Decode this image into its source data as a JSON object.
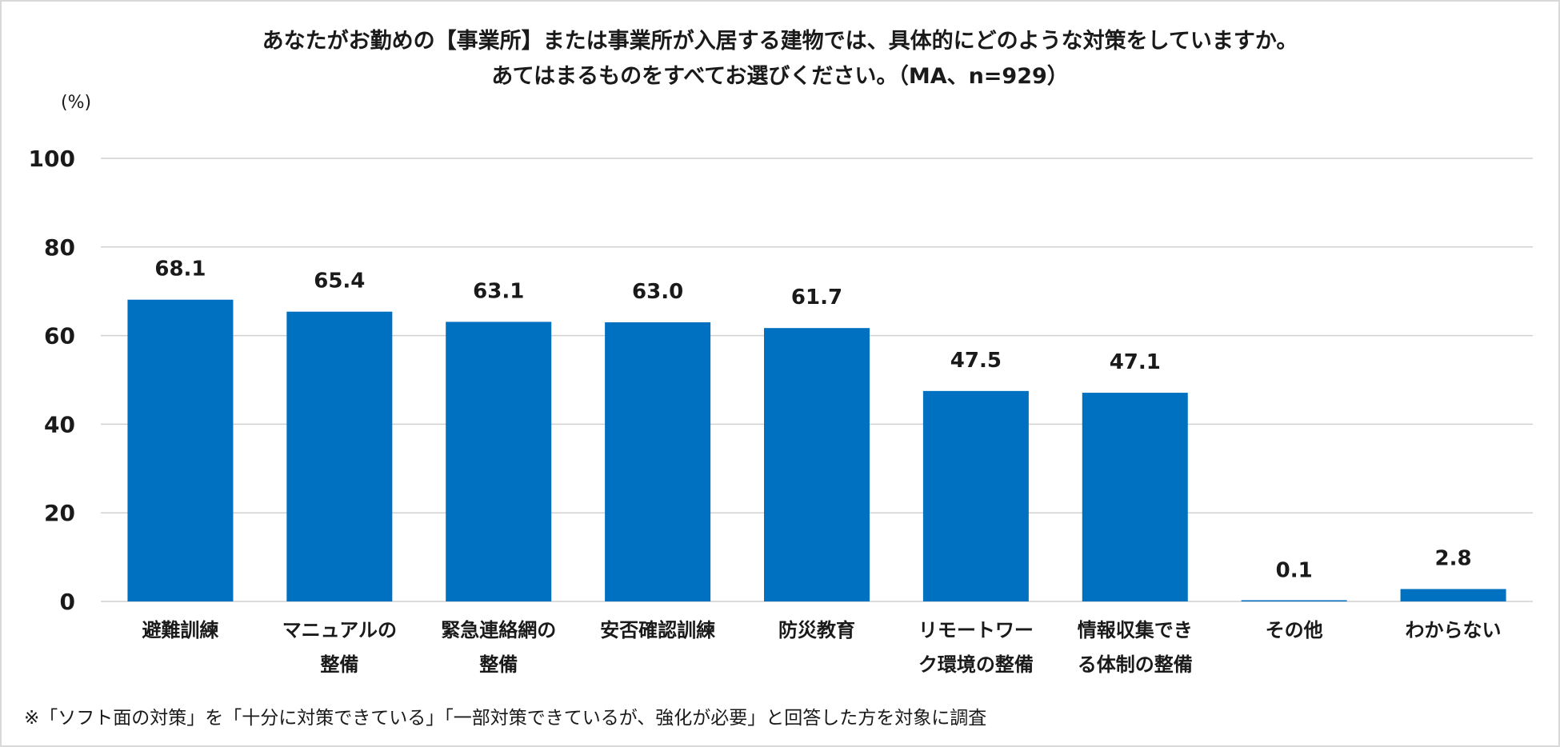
{
  "chart_data": {
    "type": "bar",
    "title_line1": "あなたがお勤めの【事業所】または事業所が入居する建物では、具体的にどのような対策をしていますか。",
    "title_line2": "あてはまるものをすべてお選びください。（MA、n=929）",
    "ylabel": "(%)",
    "ylim": [
      0,
      100
    ],
    "yticks": [
      0,
      20,
      40,
      60,
      80,
      100
    ],
    "grid": true,
    "color": "#0070c0",
    "categories": [
      [
        "避難訓練"
      ],
      [
        "マニュアルの",
        "整備"
      ],
      [
        "緊急連絡網の",
        "整備"
      ],
      [
        "安否確認訓練"
      ],
      [
        "防災教育"
      ],
      [
        "リモートワー",
        "ク環境の整備"
      ],
      [
        "情報収集でき",
        "る体制の整備"
      ],
      [
        "その他"
      ],
      [
        "わからない"
      ]
    ],
    "values": [
      68.1,
      65.4,
      63.1,
      63.0,
      61.7,
      47.5,
      47.1,
      0.1,
      2.8
    ],
    "value_labels": [
      "68.1",
      "65.4",
      "63.1",
      "63.0",
      "61.7",
      "47.5",
      "47.1",
      "0.1",
      "2.8"
    ]
  },
  "footnote": "※「ソフト面の対策」を「十分に対策できている」「一部対策できているが、強化が必要」と回答した方を対象に調査"
}
